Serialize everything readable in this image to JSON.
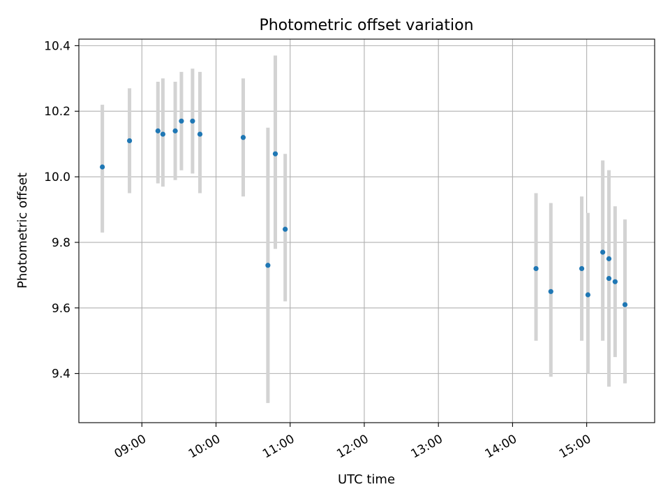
{
  "chart_data": {
    "type": "scatter",
    "title": "Photometric offset variation",
    "xlabel": "UTC time",
    "ylabel": "Photometric offset",
    "xlim": [
      "08:09",
      "15:55"
    ],
    "ylim": [
      9.25,
      10.42
    ],
    "x_ticks": [
      "09:00",
      "10:00",
      "11:00",
      "12:00",
      "13:00",
      "14:00",
      "15:00"
    ],
    "y_ticks": [
      9.4,
      9.6,
      9.8,
      10.0,
      10.2,
      10.4
    ],
    "grid": true,
    "marker_color": "#1f77b4",
    "errorbar_color": "#d3d3d3",
    "points": [
      {
        "t": "08:28",
        "y": 10.03,
        "lo": 9.83,
        "hi": 10.22
      },
      {
        "t": "08:50",
        "y": 10.11,
        "lo": 9.95,
        "hi": 10.27
      },
      {
        "t": "09:13",
        "y": 10.14,
        "lo": 9.98,
        "hi": 10.29
      },
      {
        "t": "09:17",
        "y": 10.13,
        "lo": 9.97,
        "hi": 10.3
      },
      {
        "t": "09:27",
        "y": 10.14,
        "lo": 9.99,
        "hi": 10.29
      },
      {
        "t": "09:32",
        "y": 10.17,
        "lo": 10.02,
        "hi": 10.32
      },
      {
        "t": "09:41",
        "y": 10.17,
        "lo": 10.01,
        "hi": 10.33
      },
      {
        "t": "09:47",
        "y": 10.13,
        "lo": 9.95,
        "hi": 10.32
      },
      {
        "t": "10:22",
        "y": 10.12,
        "lo": 9.94,
        "hi": 10.3
      },
      {
        "t": "10:42",
        "y": 9.73,
        "lo": 9.31,
        "hi": 10.15
      },
      {
        "t": "10:48",
        "y": 10.07,
        "lo": 9.78,
        "hi": 10.37
      },
      {
        "t": "10:56",
        "y": 9.84,
        "lo": 9.62,
        "hi": 10.07
      },
      {
        "t": "14:19",
        "y": 9.72,
        "lo": 9.5,
        "hi": 9.95
      },
      {
        "t": "14:31",
        "y": 9.65,
        "lo": 9.39,
        "hi": 9.92
      },
      {
        "t": "14:56",
        "y": 9.72,
        "lo": 9.5,
        "hi": 9.94
      },
      {
        "t": "15:01",
        "y": 9.64,
        "lo": 9.4,
        "hi": 9.89
      },
      {
        "t": "15:13",
        "y": 9.77,
        "lo": 9.5,
        "hi": 10.05
      },
      {
        "t": "15:18",
        "y": 9.75,
        "lo": 9.36,
        "hi": 10.02
      },
      {
        "t": "15:18",
        "y": 9.69,
        "lo": 9.36,
        "hi": 10.02
      },
      {
        "t": "15:23",
        "y": 9.68,
        "lo": 9.45,
        "hi": 9.91
      },
      {
        "t": "15:31",
        "y": 9.61,
        "lo": 9.37,
        "hi": 9.87
      }
    ]
  }
}
